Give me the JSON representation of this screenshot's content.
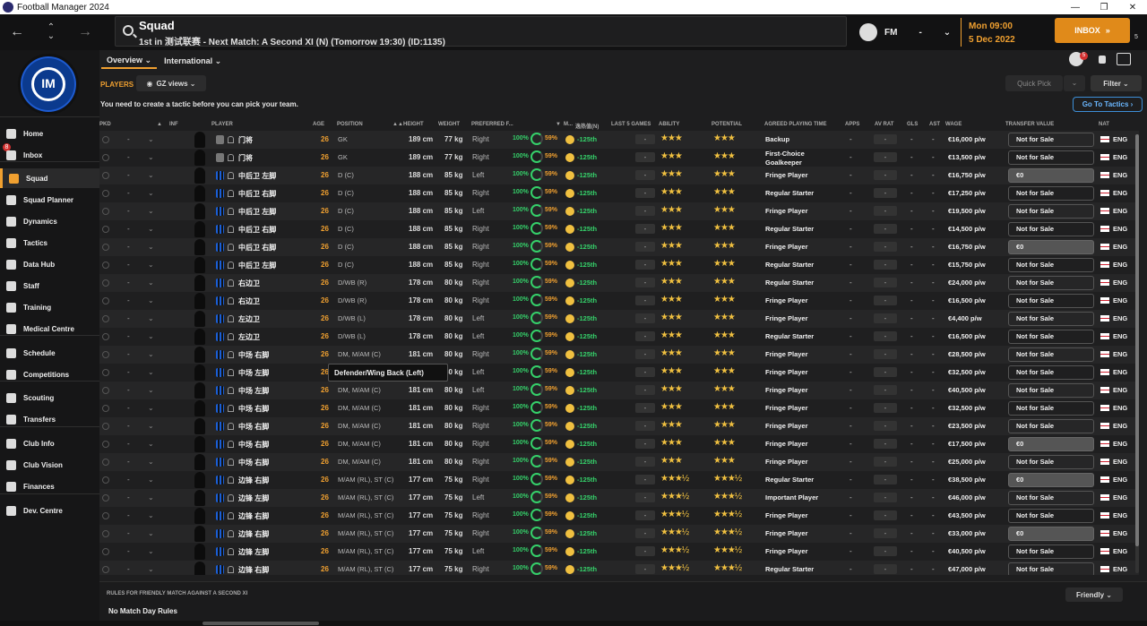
{
  "window": {
    "title": "Football Manager 2024",
    "minimize": "—",
    "maximize": "❐",
    "close": "✕"
  },
  "header": {
    "page_title": "Squad",
    "page_subtitle": "1st in 测试联赛 - Next Match: A Second XI (N) (Tomorrow 19:30) (ID:1135)",
    "manager_label": "FM",
    "dash": "-",
    "date_line1": "Mon 09:00",
    "date_line2": "5 Dec 2022",
    "inbox_label": "INBOX",
    "inbox_badge": "5",
    "notif_count": "5"
  },
  "sidebar": {
    "inbox_badge": "8",
    "items": [
      {
        "label": "Home",
        "icon": "home-icon"
      },
      {
        "label": "Inbox",
        "icon": "inbox-icon"
      },
      {
        "label": "Squad",
        "icon": "shirt-icon"
      },
      {
        "label": "Squad Planner",
        "icon": "planner-icon"
      },
      {
        "label": "Dynamics",
        "icon": "dynamics-icon"
      },
      {
        "label": "Tactics",
        "icon": "tactics-icon"
      },
      {
        "label": "Data Hub",
        "icon": "data-hub-icon"
      },
      {
        "label": "Staff",
        "icon": "staff-icon"
      },
      {
        "label": "Training",
        "icon": "training-icon"
      },
      {
        "label": "Medical Centre",
        "icon": "medical-icon"
      },
      {
        "label": "Schedule",
        "icon": "calendar-icon"
      },
      {
        "label": "Competitions",
        "icon": "trophy-icon"
      },
      {
        "label": "Scouting",
        "icon": "scouting-icon"
      },
      {
        "label": "Transfers",
        "icon": "transfers-icon"
      },
      {
        "label": "Club Info",
        "icon": "shield-icon"
      },
      {
        "label": "Club Vision",
        "icon": "vision-icon"
      },
      {
        "label": "Finances",
        "icon": "finances-icon"
      },
      {
        "label": "Dev. Centre",
        "icon": "dev-centre-icon"
      }
    ]
  },
  "tabs": {
    "overview": "Overview ⌄",
    "international": "International ⌄"
  },
  "toolbar": {
    "players_label": "PLAYERS",
    "views_label": "GZ views ⌄",
    "quick_pick": "Quick Pick",
    "filter": "Filter ⌄",
    "notice": "You need to create a tactic before you can pick your team.",
    "go_to_tactics": "Go To Tactics ›"
  },
  "columns": {
    "pkd": "PKD",
    "inf": "INF",
    "player": "PLAYER",
    "age": "AGE",
    "position": "POSITION",
    "height": "HEIGHT",
    "weight": "WEIGHT",
    "preferred_foot": "PREFERRED F...",
    "m": "M...",
    "rank": "逸热值(N)",
    "last5": "LAST 5 GAMES",
    "ability": "ABILITY",
    "potential": "POTENTIAL",
    "role": "AGREED PLAYING TIME",
    "apps": "APPS",
    "avrat": "AV RAT",
    "gls": "GLS",
    "ast": "AST",
    "wage": "WAGE",
    "tv": "TRANSFER VALUE",
    "nat": "NAT"
  },
  "rows": [
    {
      "name": "门将",
      "age": "26",
      "pos": "GK",
      "height": "189 cm",
      "weight": "77 kg",
      "foot": "Right",
      "cond": "100%",
      "sharp": "59%",
      "rank": "-125th",
      "ability": "★★★",
      "potential": "★★★",
      "role": "Backup",
      "apps": "-",
      "gls": "-",
      "ast": "-",
      "wage": "€16,000 p/w",
      "tv": "Not for Sale",
      "nat": "ENG",
      "gk": true
    },
    {
      "name": "门将",
      "age": "26",
      "pos": "GK",
      "height": "189 cm",
      "weight": "77 kg",
      "foot": "Right",
      "cond": "100%",
      "sharp": "59%",
      "rank": "-125th",
      "ability": "★★★",
      "potential": "★★★",
      "role": "First-Choice Goalkeeper",
      "apps": "-",
      "gls": "-",
      "ast": "-",
      "wage": "€13,500 p/w",
      "tv": "Not for Sale",
      "nat": "ENG",
      "gk": true
    },
    {
      "name": "中后卫 左脚",
      "age": "26",
      "pos": "D (C)",
      "height": "188 cm",
      "weight": "85 kg",
      "foot": "Left",
      "cond": "100%",
      "sharp": "59%",
      "rank": "-125th",
      "ability": "★★★",
      "potential": "★★★",
      "role": "Fringe Player",
      "apps": "-",
      "gls": "-",
      "ast": "-",
      "wage": "€16,750 p/w",
      "tv": "€0",
      "nat": "ENG"
    },
    {
      "name": "中后卫 右脚",
      "age": "26",
      "pos": "D (C)",
      "height": "188 cm",
      "weight": "85 kg",
      "foot": "Right",
      "cond": "100%",
      "sharp": "59%",
      "rank": "-125th",
      "ability": "★★★",
      "potential": "★★★",
      "role": "Regular Starter",
      "apps": "-",
      "gls": "-",
      "ast": "-",
      "wage": "€17,250 p/w",
      "tv": "Not for Sale",
      "nat": "ENG"
    },
    {
      "name": "中后卫 左脚",
      "age": "26",
      "pos": "D (C)",
      "height": "188 cm",
      "weight": "85 kg",
      "foot": "Left",
      "cond": "100%",
      "sharp": "59%",
      "rank": "-125th",
      "ability": "★★★",
      "potential": "★★★",
      "role": "Fringe Player",
      "apps": "-",
      "gls": "-",
      "ast": "-",
      "wage": "€19,500 p/w",
      "tv": "Not for Sale",
      "nat": "ENG"
    },
    {
      "name": "中后卫 右脚",
      "age": "26",
      "pos": "D (C)",
      "height": "188 cm",
      "weight": "85 kg",
      "foot": "Right",
      "cond": "100%",
      "sharp": "59%",
      "rank": "-125th",
      "ability": "★★★",
      "potential": "★★★",
      "role": "Regular Starter",
      "apps": "-",
      "gls": "-",
      "ast": "-",
      "wage": "€14,500 p/w",
      "tv": "Not for Sale",
      "nat": "ENG"
    },
    {
      "name": "中后卫 右脚",
      "age": "26",
      "pos": "D (C)",
      "height": "188 cm",
      "weight": "85 kg",
      "foot": "Right",
      "cond": "100%",
      "sharp": "59%",
      "rank": "-125th",
      "ability": "★★★",
      "potential": "★★★",
      "role": "Fringe Player",
      "apps": "-",
      "gls": "-",
      "ast": "-",
      "wage": "€16,750 p/w",
      "tv": "€0",
      "nat": "ENG"
    },
    {
      "name": "中后卫 左脚",
      "age": "26",
      "pos": "D (C)",
      "height": "188 cm",
      "weight": "85 kg",
      "foot": "Right",
      "cond": "100%",
      "sharp": "59%",
      "rank": "-125th",
      "ability": "★★★",
      "potential": "★★★",
      "role": "Regular Starter",
      "apps": "-",
      "gls": "-",
      "ast": "-",
      "wage": "€15,750 p/w",
      "tv": "Not for Sale",
      "nat": "ENG"
    },
    {
      "name": "右边卫",
      "age": "26",
      "pos": "D/WB (R)",
      "height": "178 cm",
      "weight": "80 kg",
      "foot": "Right",
      "cond": "100%",
      "sharp": "59%",
      "rank": "-125th",
      "ability": "★★★",
      "potential": "★★★",
      "role": "Regular Starter",
      "apps": "-",
      "gls": "-",
      "ast": "-",
      "wage": "€24,000 p/w",
      "tv": "Not for Sale",
      "nat": "ENG"
    },
    {
      "name": "右边卫",
      "age": "26",
      "pos": "D/WB (R)",
      "height": "178 cm",
      "weight": "80 kg",
      "foot": "Right",
      "cond": "100%",
      "sharp": "59%",
      "rank": "-125th",
      "ability": "★★★",
      "potential": "★★★",
      "role": "Fringe Player",
      "apps": "-",
      "gls": "-",
      "ast": "-",
      "wage": "€16,500 p/w",
      "tv": "Not for Sale",
      "nat": "ENG"
    },
    {
      "name": "左边卫",
      "age": "26",
      "pos": "D/WB (L)",
      "height": "178 cm",
      "weight": "80 kg",
      "foot": "Left",
      "cond": "100%",
      "sharp": "59%",
      "rank": "-125th",
      "ability": "★★★",
      "potential": "★★★",
      "role": "Fringe Player",
      "apps": "-",
      "gls": "-",
      "ast": "-",
      "wage": "€4,400 p/w",
      "tv": "Not for Sale",
      "nat": "ENG"
    },
    {
      "name": "左边卫",
      "age": "26",
      "pos": "D/WB (L)",
      "height": "178 cm",
      "weight": "80 kg",
      "foot": "Left",
      "cond": "100%",
      "sharp": "59%",
      "rank": "-125th",
      "ability": "★★★",
      "potential": "★★★",
      "role": "Regular Starter",
      "apps": "-",
      "gls": "-",
      "ast": "-",
      "wage": "€16,500 p/w",
      "tv": "Not for Sale",
      "nat": "ENG"
    },
    {
      "name": "中场 右脚",
      "age": "26",
      "pos": "DM, M/AM (C)",
      "height": "181 cm",
      "weight": "80 kg",
      "foot": "Right",
      "cond": "100%",
      "sharp": "59%",
      "rank": "-125th",
      "ability": "★★★",
      "potential": "★★★",
      "role": "Fringe Player",
      "apps": "-",
      "gls": "-",
      "ast": "-",
      "wage": "€28,500 p/w",
      "tv": "Not for Sale",
      "nat": "ENG"
    },
    {
      "name": "中场 左脚",
      "age": "26",
      "pos": "DM, M/AM (C)",
      "height": "181 cm",
      "weight": "80 kg",
      "foot": "Left",
      "cond": "100%",
      "sharp": "59%",
      "rank": "-125th",
      "ability": "★★★",
      "potential": "★★★",
      "role": "Fringe Player",
      "apps": "-",
      "gls": "-",
      "ast": "-",
      "wage": "€32,500 p/w",
      "tv": "Not for Sale",
      "nat": "ENG"
    },
    {
      "name": "中场 左脚",
      "age": "26",
      "pos": "DM, M/AM (C)",
      "height": "181 cm",
      "weight": "80 kg",
      "foot": "Left",
      "cond": "100%",
      "sharp": "59%",
      "rank": "-125th",
      "ability": "★★★",
      "potential": "★★★",
      "role": "Fringe Player",
      "apps": "-",
      "gls": "-",
      "ast": "-",
      "wage": "€40,500 p/w",
      "tv": "Not for Sale",
      "nat": "ENG"
    },
    {
      "name": "中场 右脚",
      "age": "26",
      "pos": "DM, M/AM (C)",
      "height": "181 cm",
      "weight": "80 kg",
      "foot": "Right",
      "cond": "100%",
      "sharp": "59%",
      "rank": "-125th",
      "ability": "★★★",
      "potential": "★★★",
      "role": "Fringe Player",
      "apps": "-",
      "gls": "-",
      "ast": "-",
      "wage": "€32,500 p/w",
      "tv": "Not for Sale",
      "nat": "ENG"
    },
    {
      "name": "中场 右脚",
      "age": "26",
      "pos": "DM, M/AM (C)",
      "height": "181 cm",
      "weight": "80 kg",
      "foot": "Right",
      "cond": "100%",
      "sharp": "59%",
      "rank": "-125th",
      "ability": "★★★",
      "potential": "★★★",
      "role": "Fringe Player",
      "apps": "-",
      "gls": "-",
      "ast": "-",
      "wage": "€23,500 p/w",
      "tv": "Not for Sale",
      "nat": "ENG"
    },
    {
      "name": "中场 右脚",
      "age": "26",
      "pos": "DM, M/AM (C)",
      "height": "181 cm",
      "weight": "80 kg",
      "foot": "Right",
      "cond": "100%",
      "sharp": "59%",
      "rank": "-125th",
      "ability": "★★★",
      "potential": "★★★",
      "role": "Fringe Player",
      "apps": "-",
      "gls": "-",
      "ast": "-",
      "wage": "€17,500 p/w",
      "tv": "€0",
      "nat": "ENG"
    },
    {
      "name": "中场 右脚",
      "age": "26",
      "pos": "DM, M/AM (C)",
      "height": "181 cm",
      "weight": "80 kg",
      "foot": "Right",
      "cond": "100%",
      "sharp": "59%",
      "rank": "-125th",
      "ability": "★★★",
      "potential": "★★★",
      "role": "Fringe Player",
      "apps": "-",
      "gls": "-",
      "ast": "-",
      "wage": "€25,000 p/w",
      "tv": "Not for Sale",
      "nat": "ENG"
    },
    {
      "name": "边锋 右脚",
      "age": "26",
      "pos": "M/AM (RL), ST (C)",
      "height": "177 cm",
      "weight": "75 kg",
      "foot": "Right",
      "cond": "100%",
      "sharp": "59%",
      "rank": "-125th",
      "ability": "★★★½",
      "potential": "★★★½",
      "role": "Regular Starter",
      "apps": "-",
      "gls": "-",
      "ast": "-",
      "wage": "€38,500 p/w",
      "tv": "€0",
      "nat": "ENG"
    },
    {
      "name": "边锋 左脚",
      "age": "26",
      "pos": "M/AM (RL), ST (C)",
      "height": "177 cm",
      "weight": "75 kg",
      "foot": "Left",
      "cond": "100%",
      "sharp": "59%",
      "rank": "-125th",
      "ability": "★★★½",
      "potential": "★★★½",
      "role": "Important Player",
      "apps": "-",
      "gls": "-",
      "ast": "-",
      "wage": "€46,000 p/w",
      "tv": "Not for Sale",
      "nat": "ENG"
    },
    {
      "name": "边锋 右脚",
      "age": "26",
      "pos": "M/AM (RL), ST (C)",
      "height": "177 cm",
      "weight": "75 kg",
      "foot": "Right",
      "cond": "100%",
      "sharp": "59%",
      "rank": "-125th",
      "ability": "★★★½",
      "potential": "★★★½",
      "role": "Fringe Player",
      "apps": "-",
      "gls": "-",
      "ast": "-",
      "wage": "€43,500 p/w",
      "tv": "Not for Sale",
      "nat": "ENG"
    },
    {
      "name": "边锋 右脚",
      "age": "26",
      "pos": "M/AM (RL), ST (C)",
      "height": "177 cm",
      "weight": "75 kg",
      "foot": "Right",
      "cond": "100%",
      "sharp": "59%",
      "rank": "-125th",
      "ability": "★★★½",
      "potential": "★★★½",
      "role": "Fringe Player",
      "apps": "-",
      "gls": "-",
      "ast": "-",
      "wage": "€33,000 p/w",
      "tv": "€0",
      "nat": "ENG"
    },
    {
      "name": "边锋 左脚",
      "age": "26",
      "pos": "M/AM (RL), ST (C)",
      "height": "177 cm",
      "weight": "75 kg",
      "foot": "Left",
      "cond": "100%",
      "sharp": "59%",
      "rank": "-125th",
      "ability": "★★★½",
      "potential": "★★★½",
      "role": "Fringe Player",
      "apps": "-",
      "gls": "-",
      "ast": "-",
      "wage": "€40,500 p/w",
      "tv": "Not for Sale",
      "nat": "ENG"
    },
    {
      "name": "边锋 右脚",
      "age": "26",
      "pos": "M/AM (RL), ST (C)",
      "height": "177 cm",
      "weight": "75 kg",
      "foot": "Right",
      "cond": "100%",
      "sharp": "59%",
      "rank": "-125th",
      "ability": "★★★½",
      "potential": "★★★½",
      "role": "Regular Starter",
      "apps": "-",
      "gls": "-",
      "ast": "-",
      "wage": "€47,000 p/w",
      "tv": "Not for Sale",
      "nat": "ENG"
    }
  ],
  "tooltip": "Defender/Wing Back (Left)",
  "rules": {
    "title": "RULES FOR FRIENDLY MATCH AGAINST A SECOND XI",
    "value": "No Match Day Rules",
    "friendly": "Friendly ⌄"
  },
  "colors": {
    "accent": "#f0a030",
    "positive": "#35d06a",
    "link": "#3d8fd8"
  }
}
